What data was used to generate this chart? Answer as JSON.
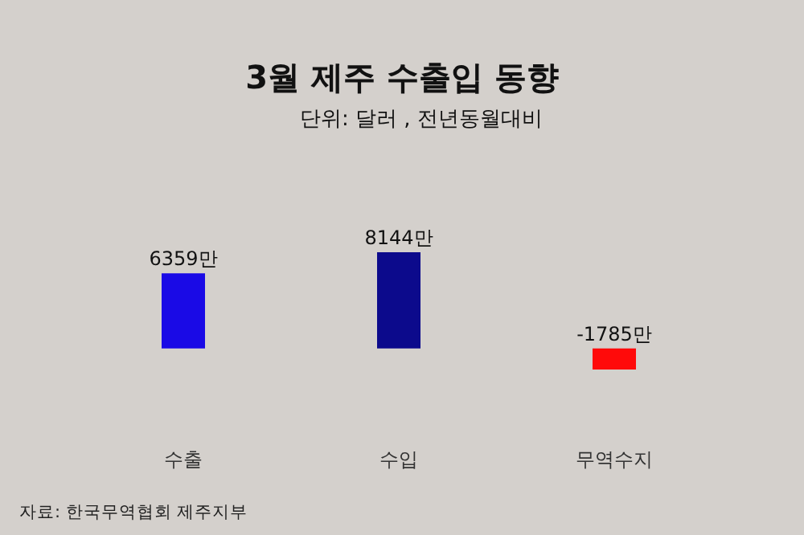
{
  "chart_data": {
    "type": "bar",
    "title": "3월 제주 수출입 동향",
    "subtitle": "단위: 달러 , 전년동월대비",
    "categories": [
      "수출",
      "수입",
      "무역수지"
    ],
    "values": [
      6359,
      8144,
      -1785
    ],
    "colors": [
      "#1a0ae6",
      "#0c0a8c",
      "#ff0a0a"
    ],
    "value_labels": [
      "6359만",
      "8144만",
      "-1785만"
    ],
    "annotations": [
      "자료: 한국무역협회 제주지부"
    ]
  }
}
